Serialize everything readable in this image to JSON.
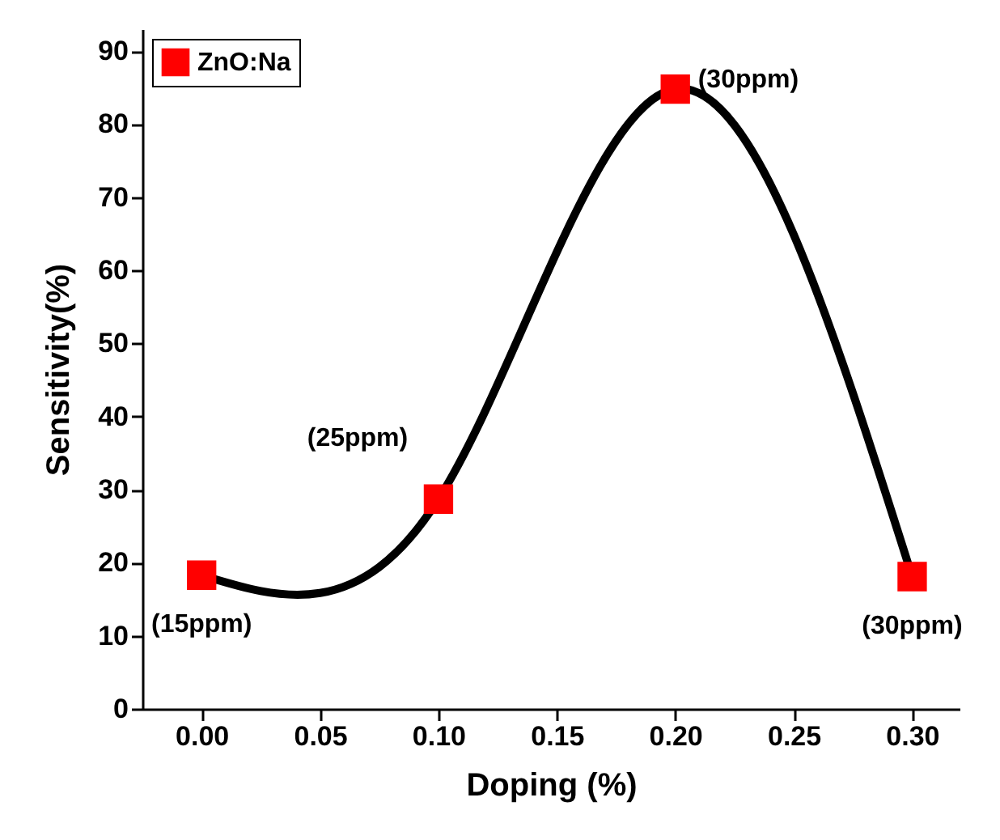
{
  "chart_data": {
    "type": "line",
    "xlabel": "Doping (%)",
    "ylabel": "Sensitivity(%)",
    "x": [
      0.0,
      0.1,
      0.2,
      0.3
    ],
    "series": [
      {
        "name": "ZnO:Na",
        "color": "#ff0000",
        "values": [
          18.3,
          28.7,
          84.8,
          18.1
        ]
      }
    ],
    "xlim": [
      -0.025,
      0.32
    ],
    "xticks": [
      {
        "value": 0,
        "label": "0.00"
      },
      {
        "value": 0.05,
        "label": "0.05"
      },
      {
        "value": 0.1,
        "label": "0.10"
      },
      {
        "value": 0.15,
        "label": "0.15"
      },
      {
        "value": 0.2,
        "label": "0.20"
      },
      {
        "value": 0.25,
        "label": "0.25"
      },
      {
        "value": 0.3,
        "label": "0.30"
      }
    ],
    "ylim": [
      0,
      93
    ],
    "yticks": [
      0,
      10,
      20,
      30,
      40,
      50,
      60,
      70,
      80,
      90
    ],
    "annotations": [
      {
        "text": "(15ppm)",
        "x": 0.0,
        "y": 18.3
      },
      {
        "text": "(25ppm)",
        "x": 0.1,
        "y": 28.7
      },
      {
        "text": "(30ppm)",
        "x": 0.2,
        "y": 84.8
      },
      {
        "text": "(30ppm)",
        "x": 0.3,
        "y": 18.1
      }
    ],
    "legend": "top left",
    "marker": "square",
    "line_style": "solid",
    "grid": false
  }
}
